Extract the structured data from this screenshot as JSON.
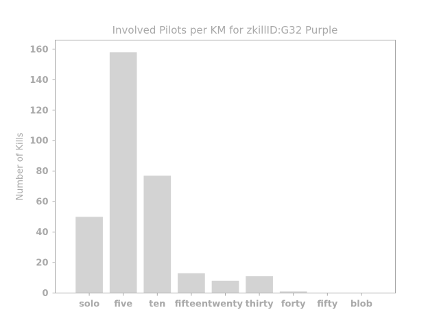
{
  "chart_data": {
    "type": "bar",
    "title": "Involved Pilots per KM for zkillID:G32 Purple",
    "xlabel": "",
    "ylabel": "Number of Kills",
    "categories": [
      "solo",
      "five",
      "ten",
      "fifteen",
      "twenty",
      "thirty",
      "forty",
      "fifty",
      "blob"
    ],
    "values": [
      50,
      158,
      77,
      13,
      8,
      11,
      1,
      0,
      0
    ],
    "ylim": [
      0,
      166
    ],
    "yticks": [
      0,
      20,
      40,
      60,
      80,
      100,
      120,
      140,
      160
    ],
    "grid": false,
    "colors": {
      "bar": "#d3d3d3",
      "text": "#a9a9a9",
      "axis": "#a9a9a9"
    }
  }
}
